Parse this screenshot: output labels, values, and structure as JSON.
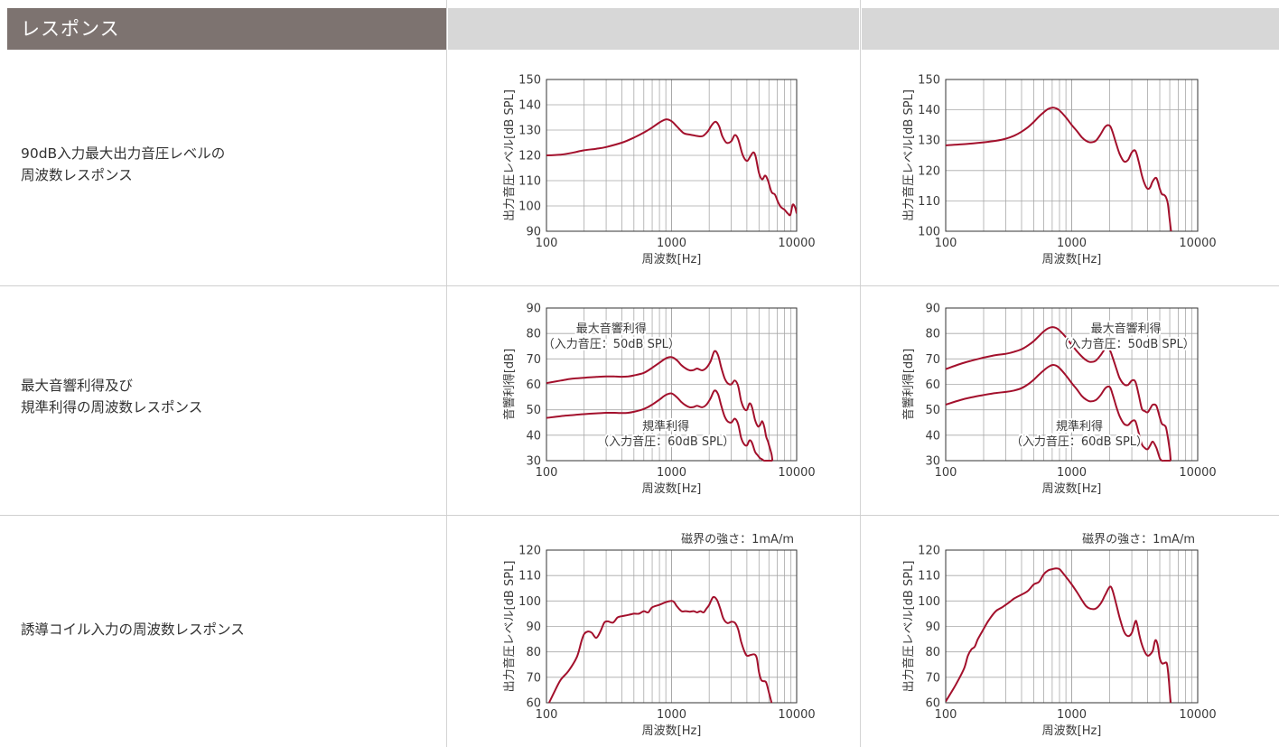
{
  "section_title": "レスポンス",
  "colors": {
    "curve": "#a3102c",
    "header_bg": "#7d7370",
    "header_gray": "#d7d7d7",
    "grid": "#a8a8a8"
  },
  "rows": [
    {
      "label_lines": [
        "90dB入力最大出力音圧レベルの",
        "周波数レスポンス"
      ]
    },
    {
      "label_lines": [
        "最大音響利得及び",
        "規準利得の周波数レスポンス"
      ]
    },
    {
      "label_lines": [
        "誘導コイル入力の周波数レスポンス"
      ]
    }
  ],
  "chart_data": [
    {
      "type": "line",
      "row": 0,
      "column": 0,
      "xlabel": "周波数[Hz]",
      "ylabel": "出力音圧レベル[dB SPL]",
      "xscale": "log",
      "xlim": [
        100,
        10000
      ],
      "ylim": [
        90,
        150
      ],
      "xticks": [
        100,
        1000,
        10000
      ],
      "yticks": [
        90,
        100,
        110,
        120,
        130,
        140,
        150
      ],
      "note": "",
      "series": [
        {
          "x": [
            100,
            130,
            160,
            200,
            250,
            300,
            400,
            500,
            600,
            700,
            800,
            900,
            1000,
            1100,
            1250,
            1400,
            1550,
            1700,
            1800,
            1950,
            2100,
            2250,
            2400,
            2550,
            2750,
            3000,
            3200,
            3400,
            3700,
            4000,
            4250,
            4500,
            4700,
            5000,
            5300,
            5600,
            5900,
            6300,
            6700,
            7100,
            7500,
            8000,
            8500,
            8900,
            9300,
            9700,
            10000
          ],
          "y": [
            120,
            120.3,
            121,
            122,
            122.6,
            123.3,
            125,
            127,
            129,
            131,
            133,
            134.2,
            133.5,
            131.5,
            128.8,
            128.2,
            127.8,
            127.5,
            127.8,
            129.5,
            132,
            133.3,
            131.5,
            127.5,
            125,
            125.6,
            128,
            126.5,
            120.2,
            117.8,
            119.5,
            121.2,
            119.5,
            113,
            110.5,
            112,
            110,
            105.5,
            104.5,
            101.5,
            99.5,
            98.5,
            97,
            96.5,
            100.5,
            99.5,
            97
          ]
        }
      ],
      "labels": []
    },
    {
      "type": "line",
      "row": 0,
      "column": 1,
      "xlabel": "周波数[Hz]",
      "ylabel": "出力音圧レベル[dB SPL]",
      "xscale": "log",
      "xlim": [
        100,
        10000
      ],
      "ylim": [
        100,
        150
      ],
      "xticks": [
        100,
        1000,
        10000
      ],
      "yticks": [
        100,
        110,
        120,
        130,
        140,
        150
      ],
      "note": "",
      "series": [
        {
          "x": [
            100,
            150,
            200,
            250,
            300,
            350,
            400,
            450,
            500,
            550,
            600,
            650,
            700,
            750,
            800,
            900,
            1000,
            1100,
            1200,
            1300,
            1400,
            1550,
            1700,
            1850,
            2000,
            2100,
            2250,
            2400,
            2600,
            2800,
            3000,
            3200,
            3400,
            3600,
            3800,
            4000,
            4200,
            4400,
            4700,
            5000,
            5200,
            5400,
            5600,
            5800,
            6000,
            6100,
            6150
          ],
          "y": [
            128.3,
            128.8,
            129.3,
            129.8,
            130.5,
            131.5,
            132.8,
            134.3,
            136,
            137.8,
            139.2,
            140.3,
            140.7,
            140.5,
            139.8,
            137.5,
            135,
            133,
            131,
            129.8,
            129.3,
            129.8,
            132,
            134.5,
            134.8,
            133,
            129,
            125.5,
            123,
            123.5,
            126,
            126.5,
            123,
            118.5,
            115.5,
            114,
            114.5,
            116.5,
            117.5,
            114,
            112.2,
            112,
            111.2,
            109,
            103.5,
            101,
            100
          ]
        }
      ],
      "labels": []
    },
    {
      "type": "line",
      "row": 1,
      "column": 0,
      "xlabel": "周波数[Hz]",
      "ylabel": "音響利得[dB]",
      "xscale": "log",
      "xlim": [
        100,
        10000
      ],
      "ylim": [
        30,
        90
      ],
      "xticks": [
        100,
        1000,
        10000
      ],
      "yticks": [
        30,
        40,
        50,
        60,
        70,
        80,
        90
      ],
      "note": "",
      "series": [
        {
          "name": "最大音響利得",
          "x": [
            100,
            130,
            160,
            200,
            250,
            300,
            350,
            400,
            450,
            500,
            600,
            700,
            800,
            900,
            1000,
            1100,
            1200,
            1300,
            1400,
            1500,
            1600,
            1750,
            1900,
            2050,
            2200,
            2350,
            2500,
            2650,
            2800,
            3000,
            3200,
            3400,
            3600,
            3800,
            4000,
            4200,
            4400,
            4650,
            4900,
            5100,
            5300,
            5500,
            5700,
            5900,
            6100,
            6300,
            6400
          ],
          "y": [
            60.5,
            61.5,
            62.2,
            62.6,
            62.9,
            63.1,
            63.1,
            63.0,
            63.1,
            63.5,
            64.5,
            66.5,
            68.5,
            70.2,
            70.7,
            69.5,
            67.5,
            66.2,
            65.5,
            65.6,
            66.2,
            65.5,
            66.5,
            69,
            73,
            71.5,
            66.5,
            62.5,
            60.5,
            60.0,
            61.5,
            59.5,
            53.5,
            50.5,
            50.0,
            52.5,
            51.0,
            46.0,
            43.5,
            44.0,
            45.5,
            43.5,
            39.5,
            37.5,
            35.0,
            32.5,
            30.0
          ]
        },
        {
          "name": "規準利得",
          "x": [
            100,
            130,
            160,
            200,
            250,
            300,
            350,
            400,
            450,
            500,
            600,
            700,
            800,
            900,
            1000,
            1100,
            1200,
            1300,
            1400,
            1500,
            1600,
            1750,
            1900,
            2050,
            2200,
            2350,
            2500,
            2650,
            2800,
            3000,
            3200,
            3400,
            3600,
            3800,
            4000,
            4200,
            4400,
            4650,
            4900,
            5100,
            5300,
            5500,
            5700,
            5900,
            6100,
            6300,
            6400
          ],
          "y": [
            46.8,
            47.5,
            47.9,
            48.3,
            48.6,
            48.8,
            48.8,
            48.7,
            48.8,
            49.2,
            50.3,
            52.0,
            54.0,
            55.8,
            56.4,
            55.0,
            53.0,
            51.7,
            51.0,
            51.1,
            51.6,
            51.0,
            52.0,
            54.5,
            57.5,
            56.2,
            51.5,
            47.5,
            45.5,
            45.0,
            46.5,
            44.5,
            39.0,
            36.5,
            36.0,
            38.0,
            37.0,
            33.5,
            32.0,
            31.0,
            30.5,
            30.0,
            30.0,
            30.0,
            30.0,
            30.0,
            30.0
          ]
        }
      ],
      "labels": [
        {
          "lines": [
            "最大音響利得",
            "（入力音圧：50dB SPL）"
          ],
          "x": 330,
          "y": 80.5
        },
        {
          "lines": [
            "規準利得",
            "（入力音圧：60dB SPL）"
          ],
          "x": 900,
          "y": 42
        }
      ]
    },
    {
      "type": "line",
      "row": 1,
      "column": 1,
      "xlabel": "周波数[Hz]",
      "ylabel": "音響利得[dB]",
      "xscale": "log",
      "xlim": [
        100,
        10000
      ],
      "ylim": [
        30,
        90
      ],
      "xticks": [
        100,
        1000,
        10000
      ],
      "yticks": [
        30,
        40,
        50,
        60,
        70,
        80,
        90
      ],
      "note": "",
      "series": [
        {
          "name": "最大音響利得",
          "x": [
            100,
            130,
            160,
            200,
            250,
            300,
            350,
            400,
            450,
            500,
            550,
            600,
            650,
            700,
            750,
            800,
            900,
            1000,
            1100,
            1200,
            1300,
            1400,
            1550,
            1700,
            1850,
            2000,
            2100,
            2250,
            2400,
            2600,
            2800,
            3000,
            3200,
            3400,
            3600,
            3800,
            4000,
            4200,
            4400,
            4700,
            5000,
            5200,
            5400,
            5600,
            5800,
            6000,
            6100
          ],
          "y": [
            66.0,
            68.0,
            69.3,
            70.5,
            71.5,
            72.0,
            72.8,
            73.8,
            75.3,
            77.0,
            79.0,
            80.8,
            82.0,
            82.5,
            82.2,
            81.2,
            78.5,
            75.5,
            73.0,
            71.0,
            69.5,
            68.8,
            69.3,
            71.5,
            74.0,
            73.5,
            71.0,
            66.5,
            62.5,
            60.0,
            59.8,
            61.5,
            61.0,
            56.0,
            50.5,
            49.5,
            49.0,
            50.5,
            52.0,
            51.5,
            47.0,
            44.5,
            44.0,
            43.0,
            39.0,
            34.0,
            30.0
          ]
        },
        {
          "name": "規準利得",
          "x": [
            100,
            130,
            160,
            200,
            250,
            300,
            350,
            400,
            450,
            500,
            550,
            600,
            650,
            700,
            750,
            800,
            900,
            1000,
            1100,
            1200,
            1300,
            1400,
            1550,
            1700,
            1850,
            2000,
            2100,
            2250,
            2400,
            2600,
            2800,
            3000,
            3200,
            3400,
            3600,
            3800,
            4000,
            4200,
            4400,
            4700,
            5000,
            5200,
            5400,
            5600,
            5800,
            6000,
            6100
          ],
          "y": [
            52.0,
            53.8,
            54.9,
            55.8,
            56.6,
            57.0,
            57.6,
            58.5,
            60.0,
            61.8,
            63.8,
            65.5,
            66.8,
            67.6,
            67.4,
            66.4,
            63.5,
            60.5,
            58.0,
            55.5,
            54.0,
            53.3,
            53.8,
            55.8,
            58.5,
            59.0,
            56.5,
            51.5,
            47.5,
            44.5,
            44.0,
            45.5,
            45.5,
            41.0,
            36.5,
            35.0,
            34.5,
            36.0,
            37.5,
            35.0,
            31.0,
            30.0,
            30.0,
            30.0,
            30.0,
            30.0,
            30.0
          ]
        }
      ],
      "labels": [
        {
          "lines": [
            "最大音響利得",
            "（入力音圧：50dB SPL）"
          ],
          "x": 2700,
          "y": 80.5
        },
        {
          "lines": [
            "規準利得",
            "（入力音圧：60dB SPL）"
          ],
          "x": 1150,
          "y": 42
        }
      ]
    },
    {
      "type": "line",
      "row": 2,
      "column": 0,
      "xlabel": "周波数[Hz]",
      "ylabel": "出力音圧レベル[dB SPL]",
      "xscale": "log",
      "xlim": [
        100,
        10000
      ],
      "ylim": [
        60,
        120
      ],
      "xticks": [
        100,
        1000,
        10000
      ],
      "yticks": [
        60,
        70,
        80,
        90,
        100,
        110,
        120
      ],
      "note": "磁界の強さ：1mA/m",
      "series": [
        {
          "x": [
            105,
            115,
            130,
            150,
            175,
            190,
            200,
            215,
            230,
            250,
            270,
            290,
            310,
            340,
            370,
            400,
            450,
            500,
            550,
            600,
            650,
            700,
            800,
            900,
            1000,
            1050,
            1100,
            1200,
            1300,
            1400,
            1500,
            1600,
            1700,
            1800,
            1900,
            2000,
            2150,
            2300,
            2450,
            2600,
            2800,
            3000,
            3200,
            3400,
            3600,
            3800,
            4000,
            4300,
            4600,
            4800,
            5000,
            5200,
            5400,
            5700,
            6000,
            6300
          ],
          "y": [
            60,
            64,
            69,
            72.5,
            78,
            84,
            87,
            88,
            87.5,
            85.5,
            88,
            91.5,
            92,
            91.5,
            93.5,
            94,
            94.5,
            95,
            95,
            96,
            95.5,
            97.5,
            98.5,
            99.5,
            100,
            99.5,
            98,
            96,
            96,
            95.8,
            96,
            95.5,
            96,
            95.5,
            97,
            98.5,
            101.5,
            100.5,
            97,
            93,
            91.3,
            91.8,
            91.5,
            89,
            84,
            80.5,
            78.5,
            78.8,
            79,
            77.5,
            72,
            69,
            68.5,
            68,
            64,
            60
          ]
        }
      ],
      "labels": []
    },
    {
      "type": "line",
      "row": 2,
      "column": 1,
      "xlabel": "周波数[Hz]",
      "ylabel": "出力音圧レベル[dB SPL]",
      "xscale": "log",
      "xlim": [
        100,
        10000
      ],
      "ylim": [
        60,
        120
      ],
      "xticks": [
        100,
        1000,
        10000
      ],
      "yticks": [
        60,
        70,
        80,
        90,
        100,
        110,
        120
      ],
      "note": "磁界の強さ：1mA/m",
      "series": [
        {
          "x": [
            100,
            120,
            140,
            150,
            160,
            170,
            180,
            200,
            220,
            250,
            280,
            320,
            350,
            400,
            450,
            500,
            550,
            600,
            650,
            700,
            750,
            800,
            850,
            900,
            1000,
            1100,
            1200,
            1300,
            1400,
            1550,
            1700,
            1850,
            2000,
            2100,
            2250,
            2400,
            2600,
            2800,
            3000,
            3200,
            3300,
            3450,
            3600,
            3800,
            4000,
            4200,
            4400,
            4600,
            4800,
            5000,
            5200,
            5400,
            5700,
            5900,
            6000,
            6100
          ],
          "y": [
            60.5,
            67,
            73.5,
            78.5,
            81,
            82,
            85,
            89,
            92.5,
            96,
            97.5,
            99.5,
            101,
            102.5,
            104,
            106.5,
            107.5,
            110.5,
            112,
            112.5,
            112.8,
            112.5,
            111,
            109.5,
            106.5,
            103.5,
            100.5,
            98,
            97,
            97,
            99,
            102.5,
            105.5,
            104.5,
            99,
            93.5,
            88,
            86.2,
            87.5,
            92,
            91,
            86.5,
            83,
            80,
            78.5,
            79,
            80.5,
            84.5,
            83,
            77.5,
            75.5,
            75.5,
            75.3,
            69,
            64,
            60
          ]
        }
      ],
      "labels": []
    }
  ]
}
